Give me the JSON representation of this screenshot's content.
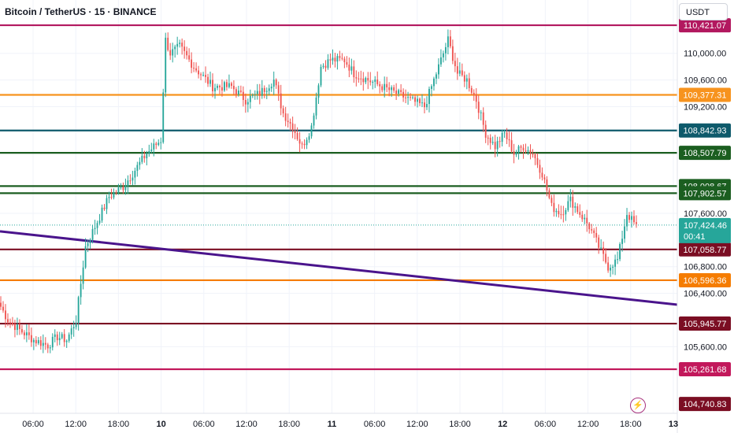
{
  "header": {
    "title": "Bitcoin / TetherUS · 15 · BINANCE",
    "currency": "USDT"
  },
  "chart_data": {
    "type": "candlestick",
    "ylim": [
      104600,
      110800
    ],
    "y_ticks": [
      {
        "label": "110,000.00",
        "value": 110000
      },
      {
        "label": "109,600.00",
        "value": 109600
      },
      {
        "label": "109,200.00",
        "value": 109200
      },
      {
        "label": "107,600.00",
        "value": 107600
      },
      {
        "label": "106,800.00",
        "value": 106800
      },
      {
        "label": "106,400.00",
        "value": 106400
      },
      {
        "label": "105,600.00",
        "value": 105600
      }
    ],
    "x_ticks": [
      {
        "label": "06:00",
        "bold": false
      },
      {
        "label": "12:00",
        "bold": false
      },
      {
        "label": "18:00",
        "bold": false
      },
      {
        "label": "10",
        "bold": true
      },
      {
        "label": "06:00",
        "bold": false
      },
      {
        "label": "12:00",
        "bold": false
      },
      {
        "label": "18:00",
        "bold": false
      },
      {
        "label": "11",
        "bold": true
      },
      {
        "label": "06:00",
        "bold": false
      },
      {
        "label": "12:00",
        "bold": false
      },
      {
        "label": "18:00",
        "bold": false
      },
      {
        "label": "12",
        "bold": true
      },
      {
        "label": "06:00",
        "bold": false
      },
      {
        "label": "12:00",
        "bold": false
      },
      {
        "label": "18:00",
        "bold": false
      },
      {
        "label": "13",
        "bold": true
      }
    ],
    "levels": [
      {
        "label": "110,421.07",
        "value": 110421.07,
        "color": "#b2185f"
      },
      {
        "label": "109,377.31",
        "value": 109377.31,
        "color": "#f7931e"
      },
      {
        "label": "108,842.93",
        "value": 108842.93,
        "color": "#0e5a6b"
      },
      {
        "label": "108,507.79",
        "value": 108507.79,
        "color": "#1b5e20"
      },
      {
        "label": "108,008.67",
        "value": 108008.67,
        "color": "#1b5e20"
      },
      {
        "label": "107,902.57",
        "value": 107902.57,
        "color": "#1b5e20"
      },
      {
        "label": "107,058.77",
        "value": 107058.77,
        "color": "#7b0e23"
      },
      {
        "label": "106,596.36",
        "value": 106596.36,
        "color": "#f57c00"
      },
      {
        "label": "105,945.77",
        "value": 105945.77,
        "color": "#7b0e23"
      },
      {
        "label": "105,261.68",
        "value": 105261.68,
        "color": "#c2185b"
      }
    ],
    "extra_scale_labels": [
      {
        "label": "104,740.83",
        "value": 104740.83,
        "color": "#7b0e23"
      }
    ],
    "current_price": {
      "label": "107,424.46",
      "value": 107424.46,
      "countdown": "00:41",
      "color": "#26a69a"
    },
    "trendline": {
      "color": "#4a148c",
      "start_value": 107330,
      "end_value": 106230
    },
    "anchors": [
      {
        "t": 0,
        "v": 106200
      },
      {
        "t": 3,
        "v": 106000
      },
      {
        "t": 8,
        "v": 105850
      },
      {
        "t": 14,
        "v": 105700
      },
      {
        "t": 20,
        "v": 105620
      },
      {
        "t": 24,
        "v": 105750
      },
      {
        "t": 28,
        "v": 105700
      },
      {
        "t": 32,
        "v": 106000
      },
      {
        "t": 36,
        "v": 107100
      },
      {
        "t": 40,
        "v": 107400
      },
      {
        "t": 46,
        "v": 107850
      },
      {
        "t": 52,
        "v": 108000
      },
      {
        "t": 56,
        "v": 108200
      },
      {
        "t": 62,
        "v": 108500
      },
      {
        "t": 68,
        "v": 108700
      },
      {
        "t": 70,
        "v": 110200
      },
      {
        "t": 72,
        "v": 110000
      },
      {
        "t": 76,
        "v": 110100
      },
      {
        "t": 82,
        "v": 109800
      },
      {
        "t": 90,
        "v": 109500
      },
      {
        "t": 98,
        "v": 109500
      },
      {
        "t": 104,
        "v": 109300
      },
      {
        "t": 110,
        "v": 109400
      },
      {
        "t": 116,
        "v": 109600
      },
      {
        "t": 120,
        "v": 109100
      },
      {
        "t": 124,
        "v": 108900
      },
      {
        "t": 128,
        "v": 108600
      },
      {
        "t": 132,
        "v": 108900
      },
      {
        "t": 136,
        "v": 109800
      },
      {
        "t": 140,
        "v": 109900
      },
      {
        "t": 146,
        "v": 109900
      },
      {
        "t": 150,
        "v": 109700
      },
      {
        "t": 156,
        "v": 109600
      },
      {
        "t": 162,
        "v": 109500
      },
      {
        "t": 168,
        "v": 109400
      },
      {
        "t": 174,
        "v": 109300
      },
      {
        "t": 180,
        "v": 109200
      },
      {
        "t": 186,
        "v": 109800
      },
      {
        "t": 190,
        "v": 110200
      },
      {
        "t": 194,
        "v": 109700
      },
      {
        "t": 198,
        "v": 109600
      },
      {
        "t": 202,
        "v": 109300
      },
      {
        "t": 206,
        "v": 108800
      },
      {
        "t": 210,
        "v": 108600
      },
      {
        "t": 214,
        "v": 108800
      },
      {
        "t": 218,
        "v": 108500
      },
      {
        "t": 222,
        "v": 108600
      },
      {
        "t": 226,
        "v": 108500
      },
      {
        "t": 230,
        "v": 108200
      },
      {
        "t": 234,
        "v": 107700
      },
      {
        "t": 238,
        "v": 107600
      },
      {
        "t": 242,
        "v": 107800
      },
      {
        "t": 246,
        "v": 107600
      },
      {
        "t": 250,
        "v": 107400
      },
      {
        "t": 254,
        "v": 107100
      },
      {
        "t": 258,
        "v": 106800
      },
      {
        "t": 262,
        "v": 106900
      },
      {
        "t": 266,
        "v": 107600
      },
      {
        "t": 270,
        "v": 107400
      }
    ]
  }
}
